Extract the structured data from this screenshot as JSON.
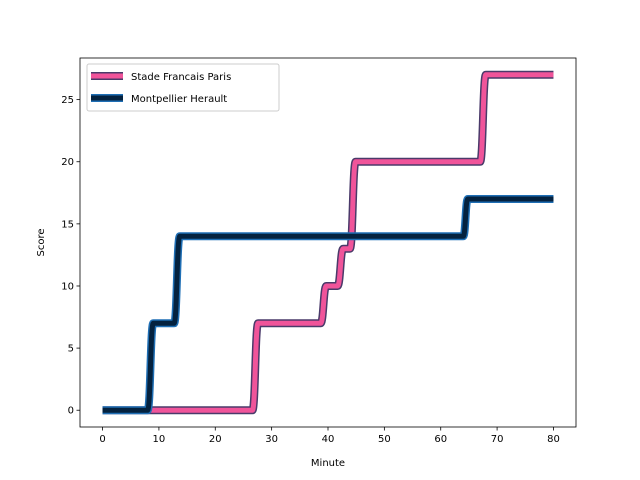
{
  "chart_data": {
    "type": "line",
    "title": "",
    "xlabel": "Minute",
    "ylabel": "Score",
    "xlim": [
      -4,
      84
    ],
    "ylim": [
      -1.35,
      28.35
    ],
    "xticks": [
      0,
      10,
      20,
      30,
      40,
      50,
      60,
      70,
      80
    ],
    "yticks": [
      0,
      5,
      10,
      15,
      20,
      25
    ],
    "grid": false,
    "legend_position": "upper-left",
    "series": [
      {
        "name": "Stade Francais Paris",
        "color": "#f0549a",
        "edge_color": "#4a3a6a",
        "points": [
          [
            0,
            0
          ],
          [
            26.6,
            0
          ],
          [
            27.6,
            7
          ],
          [
            38.7,
            7
          ],
          [
            39.7,
            10
          ],
          [
            41.7,
            10
          ],
          [
            42.7,
            13
          ],
          [
            43.9,
            13
          ],
          [
            44.9,
            20
          ],
          [
            67,
            20
          ],
          [
            68,
            27
          ],
          [
            80,
            27
          ]
        ]
      },
      {
        "name": "Montpellier Herault",
        "color": "#04223f",
        "edge_color": "#1f6fb5",
        "points": [
          [
            0,
            0
          ],
          [
            8,
            0
          ],
          [
            9,
            7
          ],
          [
            12.7,
            7
          ],
          [
            13.7,
            14
          ],
          [
            64,
            14
          ],
          [
            64.8,
            17
          ],
          [
            80,
            17
          ]
        ]
      }
    ]
  }
}
